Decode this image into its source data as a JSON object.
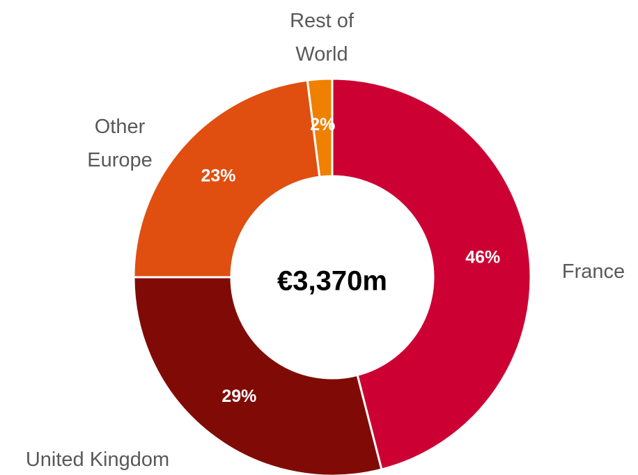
{
  "chart_data": {
    "type": "donut",
    "center_label": "€3,370m",
    "categories": [
      "France",
      "United Kingdom",
      "Other Europe",
      "Rest of World"
    ],
    "values": [
      46,
      29,
      23,
      2
    ],
    "value_labels": [
      "46%",
      "29%",
      "23%",
      "2%"
    ],
    "colors": [
      "#cc0033",
      "#800b06",
      "#e04e10",
      "#f08000"
    ]
  }
}
